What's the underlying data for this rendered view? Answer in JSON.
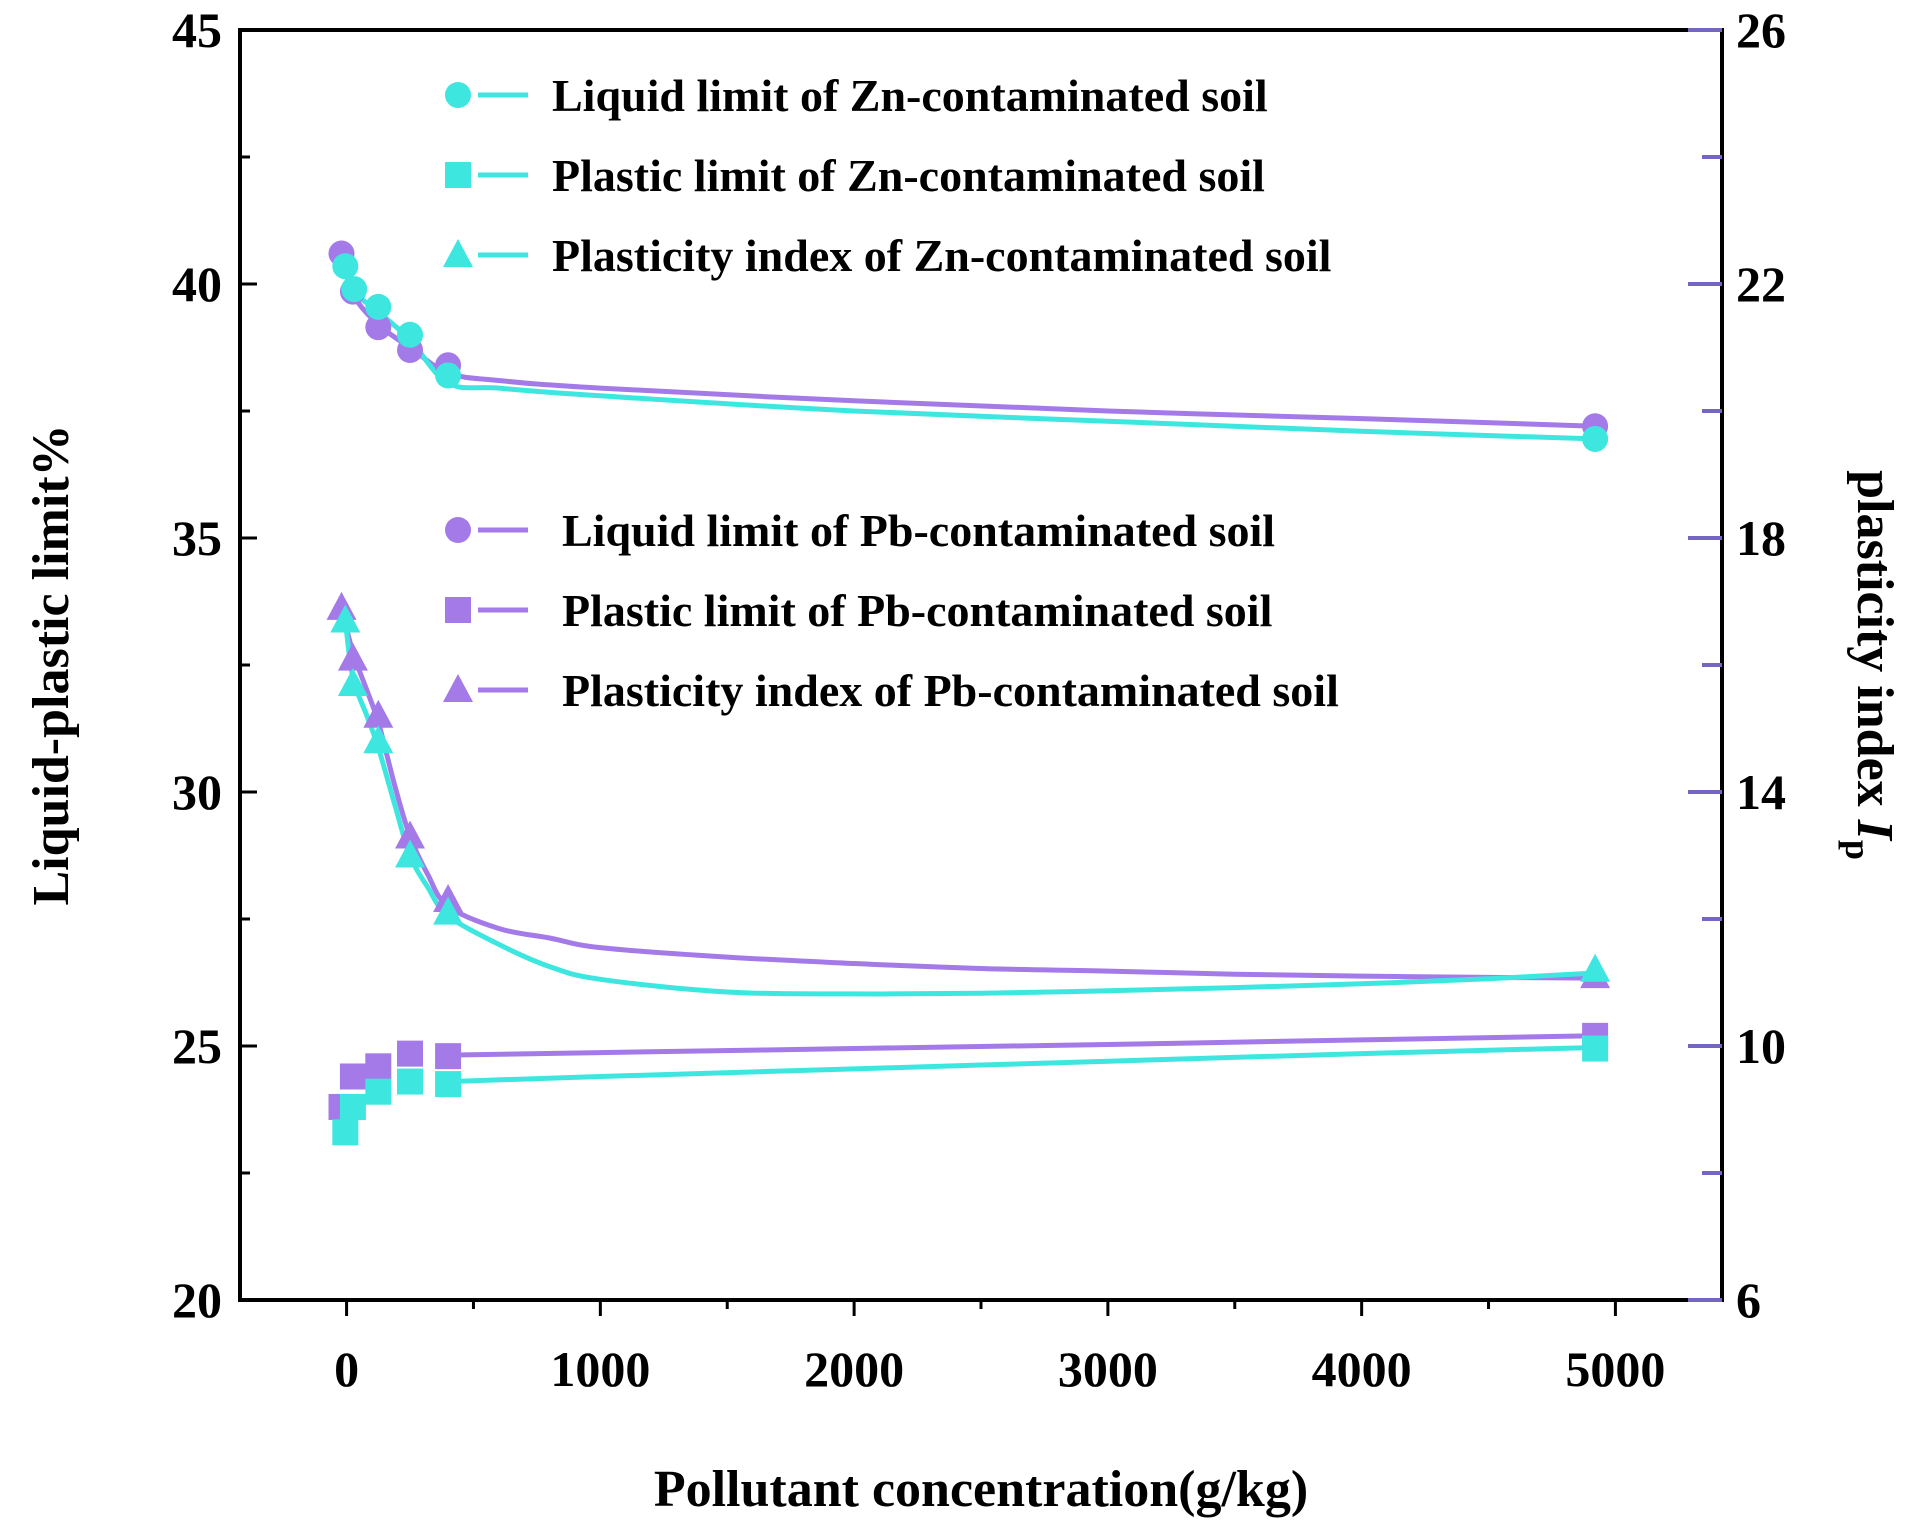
{
  "chart_data": {
    "type": "line",
    "xlabel": "Pollutant concentration(g/kg)",
    "ylabel": "Liquid-plastic limit%",
    "y2label": "plasticity index ",
    "y2label_italic": "I",
    "y2label_sub": "p",
    "xlim": [
      -420,
      5420
    ],
    "ylim": [
      20,
      45
    ],
    "y2lim": [
      6,
      26
    ],
    "x_ticks": [
      "0",
      "1000",
      "2000",
      "3000",
      "4000",
      "5000"
    ],
    "y_ticks": [
      "20",
      "25",
      "30",
      "35",
      "40",
      "45"
    ],
    "y2_ticks": [
      "6",
      "10",
      "14",
      "18",
      "22",
      "26"
    ],
    "colors": {
      "zn": "#3ee6e0",
      "pb": "#a47ae8"
    },
    "legend": {
      "zn": [
        "Liquid limit of Zn-contaminated  soil",
        "Plastic limit of Zn-contaminated  soil",
        "Plasticity index of Zn-contaminated  soil"
      ],
      "pb": [
        "Liquid limit of Pb-contaminated soil",
        "Plastic limit of Pb-contaminated soil",
        "Plasticity index of Pb-contaminated soil"
      ]
    },
    "series": [
      {
        "name": "Liquid limit of Pb-contaminated soil",
        "metal": "pb",
        "marker": "circle",
        "axis": "left",
        "x": [
          -20,
          25,
          125,
          250,
          400,
          4920
        ],
        "y": [
          40.6,
          39.85,
          39.15,
          38.7,
          38.4,
          37.2
        ]
      },
      {
        "name": "Liquid limit of Zn-contaminated soil",
        "metal": "zn",
        "marker": "circle",
        "axis": "left",
        "x": [
          -5,
          30,
          125,
          250,
          400,
          4920
        ],
        "y": [
          40.35,
          39.9,
          39.55,
          39.0,
          38.2,
          36.95
        ]
      },
      {
        "name": "Plastic limit of Pb-contaminated soil",
        "metal": "pb",
        "marker": "square",
        "axis": "left",
        "x": [
          -20,
          25,
          125,
          250,
          400,
          4920
        ],
        "y": [
          23.8,
          24.4,
          24.6,
          24.85,
          24.8,
          25.2
        ]
      },
      {
        "name": "Plastic limit of Zn-contaminated soil",
        "metal": "zn",
        "marker": "square",
        "axis": "left",
        "x": [
          -5,
          25,
          125,
          250,
          400,
          4920
        ],
        "y": [
          23.3,
          23.8,
          24.1,
          24.3,
          24.25,
          24.95
        ]
      },
      {
        "name": "Plasticity index of Pb-contaminated soil",
        "metal": "pb",
        "marker": "triangle",
        "axis": "right",
        "x": [
          -20,
          25,
          125,
          250,
          400,
          4920
        ],
        "y": [
          16.9,
          16.1,
          15.2,
          13.3,
          12.3,
          11.1
        ]
      },
      {
        "name": "Plasticity index of Zn-contaminated soil",
        "metal": "zn",
        "marker": "triangle",
        "axis": "right",
        "x": [
          -5,
          25,
          125,
          250,
          400,
          4920
        ],
        "y": [
          16.7,
          15.7,
          14.8,
          13.0,
          12.1,
          11.2
        ]
      }
    ],
    "fit_curves": [
      {
        "metal": "pb",
        "axis": "left",
        "x": [
          -20,
          25,
          125,
          250,
          400,
          600,
          1000,
          2000,
          3000,
          4000,
          4920
        ],
        "y": [
          40.6,
          39.8,
          39.2,
          38.75,
          38.25,
          38.1,
          37.95,
          37.7,
          37.5,
          37.35,
          37.2
        ]
      },
      {
        "metal": "zn",
        "axis": "left",
        "x": [
          -5,
          30,
          125,
          250,
          400,
          600,
          1000,
          2000,
          3000,
          4000,
          4920
        ],
        "y": [
          40.35,
          39.85,
          39.45,
          38.9,
          38.05,
          37.95,
          37.8,
          37.5,
          37.3,
          37.1,
          36.95
        ]
      },
      {
        "metal": "pb",
        "axis": "left",
        "x": [
          400,
          1000,
          2000,
          3000,
          4000,
          4920
        ],
        "y": [
          24.82,
          24.87,
          24.95,
          25.03,
          25.12,
          25.2
        ]
      },
      {
        "metal": "zn",
        "axis": "left",
        "x": [
          400,
          1000,
          2000,
          3000,
          4000,
          4920
        ],
        "y": [
          24.3,
          24.4,
          24.55,
          24.7,
          24.85,
          24.97
        ]
      },
      {
        "metal": "pb",
        "axis": "right",
        "x": [
          -20,
          25,
          80,
          125,
          190,
          250,
          320,
          400,
          600,
          800,
          1000,
          1500,
          2000,
          2500,
          3000,
          3500,
          4000,
          4500,
          4920
        ],
        "y": [
          16.9,
          16.2,
          15.6,
          15.1,
          14.1,
          13.3,
          12.7,
          12.2,
          11.85,
          11.7,
          11.55,
          11.4,
          11.3,
          11.22,
          11.18,
          11.13,
          11.1,
          11.08,
          11.07
        ]
      },
      {
        "metal": "zn",
        "axis": "right",
        "x": [
          -5,
          25,
          80,
          125,
          190,
          250,
          320,
          400,
          600,
          800,
          1000,
          1500,
          2000,
          2500,
          3000,
          3500,
          4000,
          4500,
          4920
        ],
        "y": [
          16.7,
          15.8,
          15.2,
          14.7,
          13.8,
          13.0,
          12.5,
          12.05,
          11.6,
          11.25,
          11.05,
          10.85,
          10.82,
          10.83,
          10.87,
          10.92,
          10.98,
          11.06,
          11.15
        ]
      }
    ]
  }
}
